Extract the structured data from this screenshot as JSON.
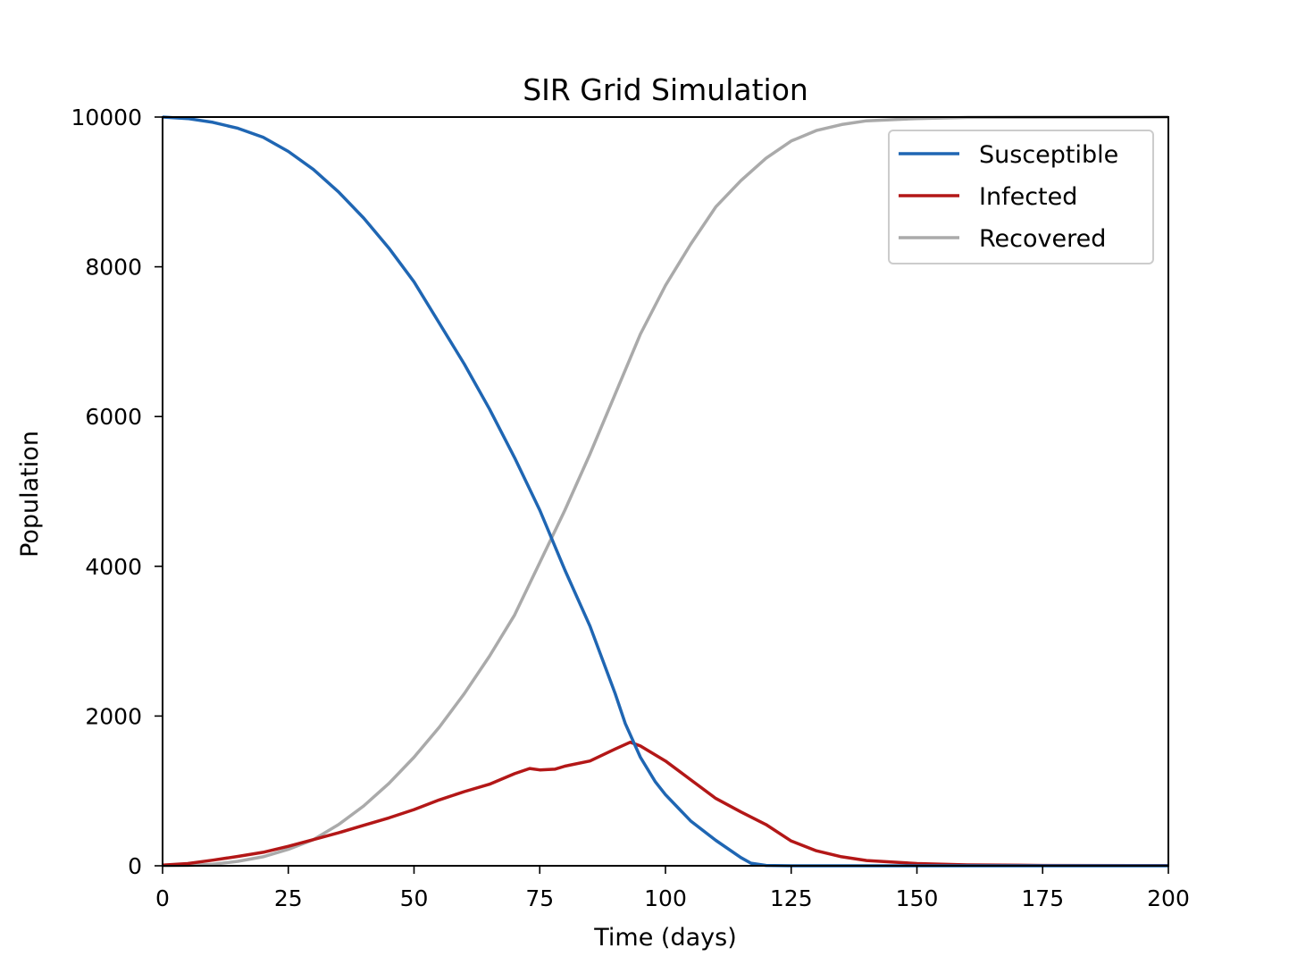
{
  "chart_data": {
    "type": "line",
    "title": "SIR Grid Simulation",
    "xlabel": "Time (days)",
    "ylabel": "Population",
    "xlim": [
      0,
      200
    ],
    "ylim": [
      0,
      10000
    ],
    "xticks": [
      0,
      25,
      50,
      75,
      100,
      125,
      150,
      175,
      200
    ],
    "yticks": [
      0,
      2000,
      4000,
      6000,
      8000,
      10000
    ],
    "grid": false,
    "legend_position": "top-right",
    "series": [
      {
        "name": "Susceptible",
        "color": "#1f66b3",
        "points": [
          [
            0,
            10000
          ],
          [
            5,
            9980
          ],
          [
            10,
            9930
          ],
          [
            15,
            9850
          ],
          [
            20,
            9730
          ],
          [
            25,
            9540
          ],
          [
            30,
            9300
          ],
          [
            35,
            9000
          ],
          [
            40,
            8650
          ],
          [
            45,
            8250
          ],
          [
            50,
            7800
          ],
          [
            55,
            7250
          ],
          [
            60,
            6700
          ],
          [
            65,
            6100
          ],
          [
            70,
            5450
          ],
          [
            75,
            4750
          ],
          [
            80,
            3950
          ],
          [
            85,
            3200
          ],
          [
            90,
            2300
          ],
          [
            92,
            1900
          ],
          [
            95,
            1450
          ],
          [
            98,
            1120
          ],
          [
            100,
            950
          ],
          [
            105,
            600
          ],
          [
            110,
            340
          ],
          [
            115,
            110
          ],
          [
            117,
            35
          ],
          [
            120,
            5
          ],
          [
            125,
            0
          ],
          [
            200,
            0
          ]
        ]
      },
      {
        "name": "Infected",
        "color": "#b31717",
        "points": [
          [
            0,
            10
          ],
          [
            5,
            30
          ],
          [
            10,
            75
          ],
          [
            15,
            125
          ],
          [
            20,
            180
          ],
          [
            25,
            260
          ],
          [
            30,
            350
          ],
          [
            35,
            440
          ],
          [
            40,
            540
          ],
          [
            45,
            640
          ],
          [
            50,
            750
          ],
          [
            55,
            880
          ],
          [
            60,
            990
          ],
          [
            65,
            1090
          ],
          [
            70,
            1230
          ],
          [
            73,
            1300
          ],
          [
            75,
            1280
          ],
          [
            78,
            1290
          ],
          [
            80,
            1330
          ],
          [
            85,
            1400
          ],
          [
            90,
            1560
          ],
          [
            93,
            1650
          ],
          [
            95,
            1600
          ],
          [
            100,
            1400
          ],
          [
            105,
            1150
          ],
          [
            110,
            900
          ],
          [
            115,
            720
          ],
          [
            120,
            550
          ],
          [
            125,
            330
          ],
          [
            130,
            200
          ],
          [
            135,
            120
          ],
          [
            140,
            70
          ],
          [
            150,
            30
          ],
          [
            160,
            12
          ],
          [
            175,
            5
          ],
          [
            200,
            2
          ]
        ]
      },
      {
        "name": "Recovered",
        "color": "#aaaaaa",
        "points": [
          [
            0,
            0
          ],
          [
            5,
            5
          ],
          [
            10,
            20
          ],
          [
            15,
            60
          ],
          [
            20,
            120
          ],
          [
            25,
            220
          ],
          [
            30,
            350
          ],
          [
            35,
            550
          ],
          [
            40,
            800
          ],
          [
            45,
            1100
          ],
          [
            50,
            1450
          ],
          [
            55,
            1850
          ],
          [
            60,
            2300
          ],
          [
            65,
            2800
          ],
          [
            70,
            3350
          ],
          [
            75,
            4050
          ],
          [
            80,
            4750
          ],
          [
            85,
            5500
          ],
          [
            90,
            6300
          ],
          [
            95,
            7100
          ],
          [
            100,
            7750
          ],
          [
            105,
            8300
          ],
          [
            110,
            8800
          ],
          [
            115,
            9150
          ],
          [
            120,
            9450
          ],
          [
            125,
            9680
          ],
          [
            130,
            9820
          ],
          [
            135,
            9900
          ],
          [
            140,
            9950
          ],
          [
            150,
            9980
          ],
          [
            160,
            9995
          ],
          [
            200,
            10000
          ]
        ]
      }
    ]
  }
}
